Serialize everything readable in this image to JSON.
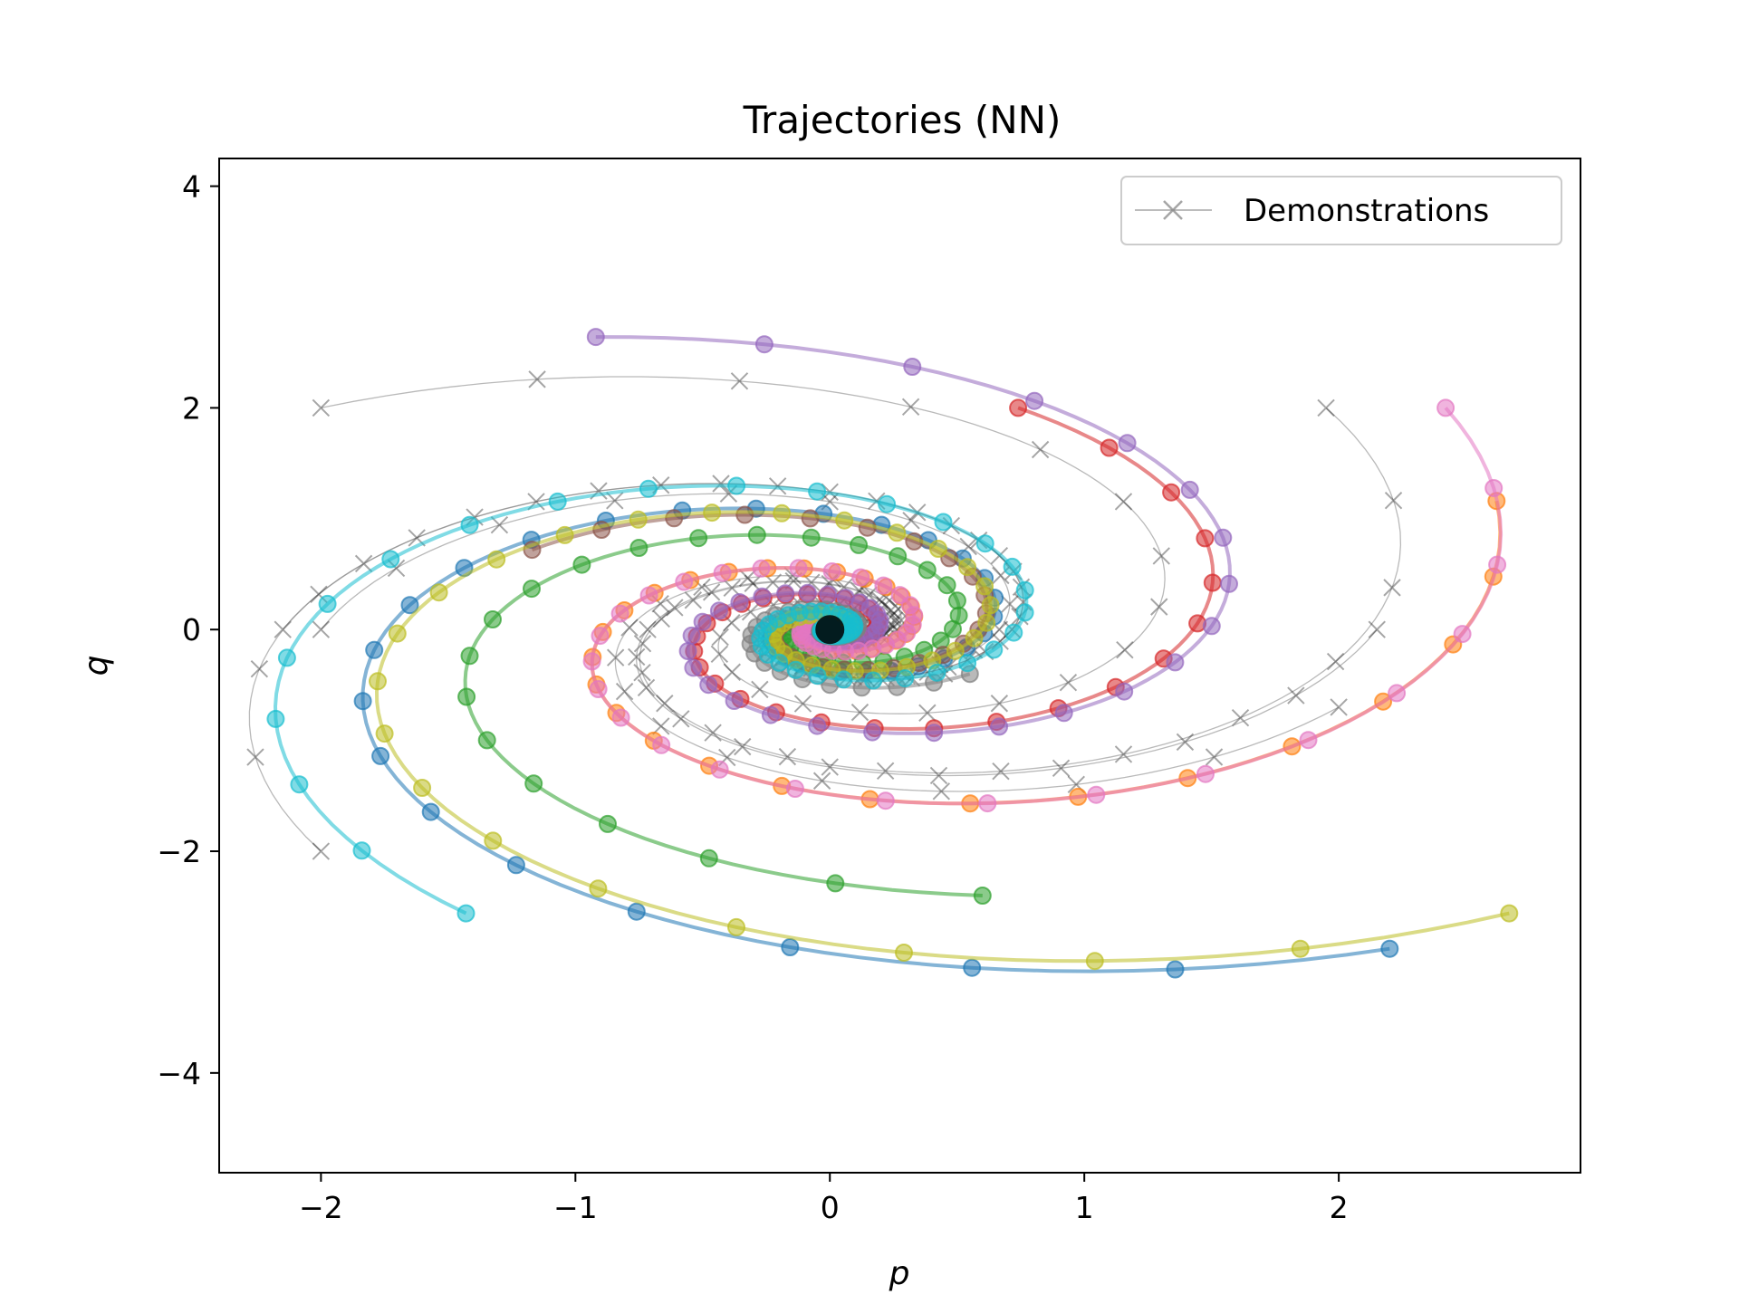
{
  "chart_data": {
    "type": "line",
    "title": "Trajectories (NN)",
    "xlabel": "p",
    "ylabel": "q",
    "xlim": [
      -2.4,
      2.95
    ],
    "ylim": [
      -4.9,
      4.25
    ],
    "xticks": [
      -2,
      -1,
      0,
      1,
      2
    ],
    "yticks": [
      -4,
      -2,
      0,
      2,
      4
    ],
    "xtick_labels": [
      "−2",
      "−1",
      "0",
      "1",
      "2"
    ],
    "ytick_labels": [
      "−4",
      "−2",
      "0",
      "2",
      "4"
    ],
    "grid": false,
    "legend": {
      "placement": "top-right",
      "entries": [
        "Demonstrations"
      ]
    },
    "demonstration_style": {
      "color": "#808080",
      "marker": "x"
    },
    "demonstrations": [
      {
        "start": [
          -2.0,
          2.0
        ],
        "theta_turns": 3.0,
        "radius_decay": 0.35
      },
      {
        "start": [
          -2.15,
          0.0
        ],
        "theta_turns": 3.0,
        "radius_decay": 0.35
      },
      {
        "start": [
          -2.0,
          0.0
        ],
        "theta_turns": 3.0,
        "radius_decay": 0.35
      },
      {
        "start": [
          -2.0,
          -2.0
        ],
        "theta_turns": 3.0,
        "radius_decay": 0.35
      },
      {
        "start": [
          1.95,
          2.0
        ],
        "theta_turns": 3.0,
        "radius_decay": 0.35
      },
      {
        "start": [
          2.15,
          0.0
        ],
        "theta_turns": 3.0,
        "radius_decay": 0.35
      },
      {
        "start": [
          2.0,
          -0.7
        ],
        "theta_turns": 3.0,
        "radius_decay": 0.35
      },
      {
        "start": [
          0.45,
          -0.4
        ],
        "theta_turns": 2.0,
        "radius_decay": 0.5
      }
    ],
    "series": [
      {
        "color": "#1f77b4",
        "start": [
          2.2,
          -2.88
        ]
      },
      {
        "color": "#ff7f0e",
        "start": [
          2.62,
          1.16
        ]
      },
      {
        "color": "#2ca02c",
        "start": [
          0.6,
          -2.4
        ]
      },
      {
        "color": "#d62728",
        "start": [
          0.74,
          2.0
        ]
      },
      {
        "color": "#9467bd",
        "start": [
          -0.92,
          2.64
        ]
      },
      {
        "color": "#8c564b",
        "start": [
          -1.17,
          0.72
        ]
      },
      {
        "color": "#e377c2",
        "start": [
          2.42,
          2.0
        ]
      },
      {
        "color": "#7f7f7f",
        "start": [
          0.55,
          -0.4
        ]
      },
      {
        "color": "#bcbd22",
        "start": [
          2.67,
          -2.56
        ]
      },
      {
        "color": "#17becf",
        "start": [
          -1.43,
          -2.56
        ]
      }
    ]
  }
}
